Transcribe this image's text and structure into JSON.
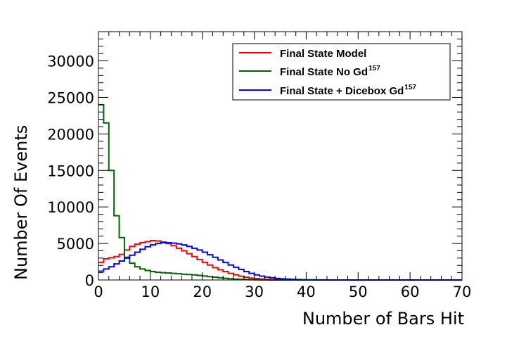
{
  "chart_data": {
    "type": "step-histogram",
    "xlabel": "Number of Bars Hit",
    "ylabel": "Number Of Events",
    "xlim": [
      0,
      70
    ],
    "ylim": [
      0,
      34000
    ],
    "bin_width": 1,
    "x_ticks": [
      0,
      10,
      20,
      30,
      40,
      50,
      60,
      70
    ],
    "y_ticks": [
      0,
      5000,
      10000,
      15000,
      20000,
      25000,
      30000
    ],
    "y_tick_labels": [
      "0",
      "5000",
      "10000",
      "15000",
      "20000",
      "25000",
      "30000"
    ],
    "x_tick_labels": [
      "0",
      "10",
      "20",
      "30",
      "40",
      "50",
      "60",
      "70"
    ],
    "grid": false,
    "legend_position": "top-right",
    "series": [
      {
        "name": "Final State Model",
        "color": "#ff0000",
        "values": [
          2400,
          2900,
          3050,
          3200,
          3500,
          4100,
          4600,
          4900,
          5100,
          5250,
          5400,
          5350,
          5200,
          5000,
          4700,
          4350,
          4000,
          3600,
          3200,
          2800,
          2400,
          2050,
          1700,
          1400,
          1150,
          900,
          700,
          520,
          380,
          270,
          190,
          130,
          90,
          60,
          40,
          25,
          15,
          10,
          6,
          4,
          2,
          1,
          1,
          0,
          0,
          0,
          0,
          0,
          0,
          0,
          0,
          0,
          0,
          0,
          0,
          0,
          0,
          0,
          0,
          0,
          0,
          0,
          0,
          0,
          0,
          0,
          0,
          0,
          0,
          0
        ]
      },
      {
        "name": "Final State No Gd",
        "name_sup": "157",
        "color": "#006400",
        "values": [
          24000,
          21500,
          15000,
          8800,
          5800,
          3100,
          2300,
          1800,
          1500,
          1300,
          1150,
          1050,
          1000,
          950,
          900,
          850,
          800,
          750,
          700,
          620,
          540,
          460,
          380,
          300,
          230,
          170,
          120,
          85,
          55,
          35,
          20,
          12,
          7,
          4,
          2,
          1,
          0,
          0,
          0,
          0,
          0,
          0,
          0,
          0,
          0,
          0,
          0,
          0,
          0,
          0,
          0,
          0,
          0,
          0,
          0,
          0,
          0,
          0,
          0,
          0,
          0,
          0,
          0,
          0,
          0,
          0,
          0,
          0,
          0,
          0
        ]
      },
      {
        "name": "Final State + Dicebox Gd",
        "name_sup": "157",
        "color": "#0000ff",
        "values": [
          1200,
          1500,
          1800,
          2200,
          2600,
          3000,
          3400,
          3800,
          4200,
          4550,
          4800,
          5000,
          5100,
          5100,
          5050,
          4950,
          4800,
          4600,
          4350,
          4100,
          3800,
          3450,
          3100,
          2750,
          2400,
          2050,
          1750,
          1450,
          1150,
          900,
          700,
          530,
          400,
          300,
          220,
          160,
          115,
          80,
          55,
          38,
          26,
          18,
          12,
          8,
          5,
          3,
          2,
          1,
          0,
          0,
          0,
          0,
          0,
          0,
          0,
          0,
          0,
          0,
          0,
          0,
          0,
          0,
          0,
          0,
          0,
          0,
          0,
          0,
          0,
          0
        ]
      }
    ]
  }
}
